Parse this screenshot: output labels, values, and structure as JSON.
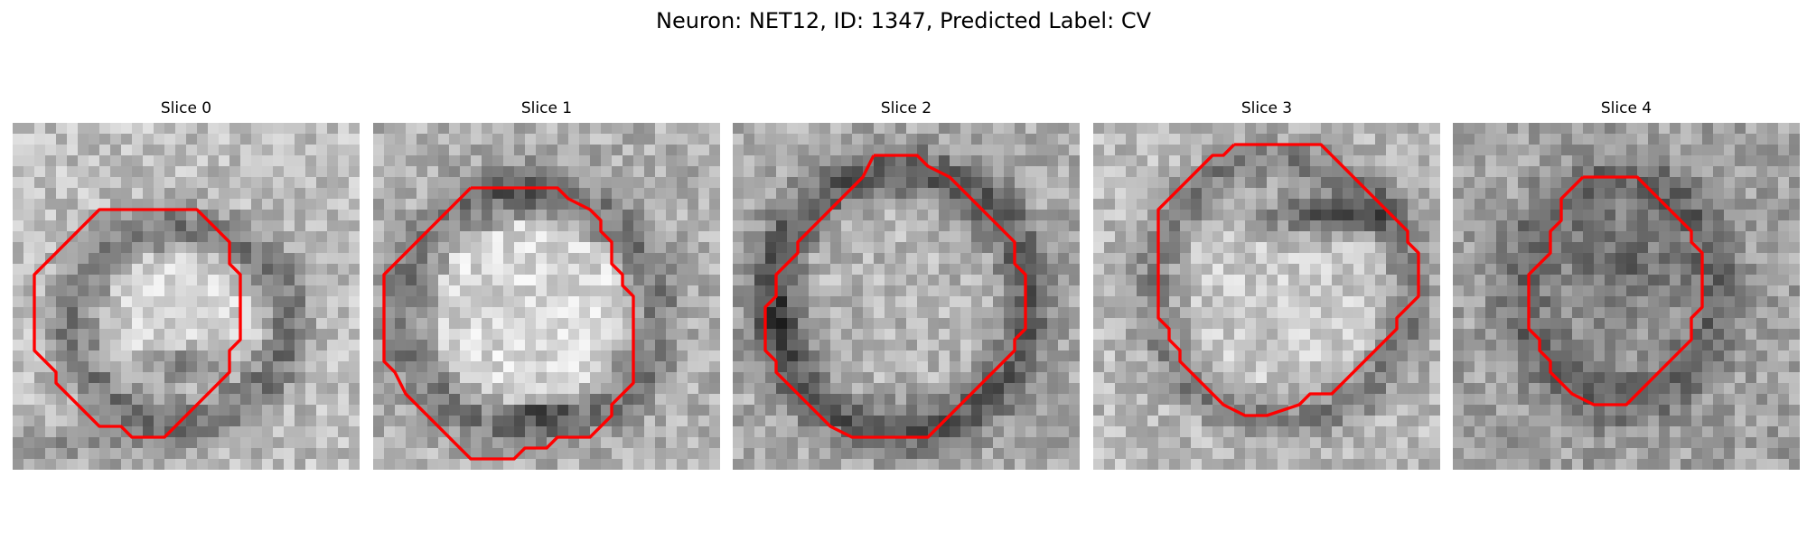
{
  "figure": {
    "title": "Neuron: NET12, ID: 1347, Predicted Label: CV"
  },
  "colors": {
    "contour": "#ff0000",
    "background": "#ffffff"
  },
  "panels": [
    {
      "title": "Slice 0",
      "seed": 11,
      "image": "grayscale-cross-section-with-dark-ring",
      "contour": [
        [
          10,
          8
        ],
        [
          17,
          8
        ],
        [
          19,
          10
        ],
        [
          20,
          11
        ],
        [
          20,
          13
        ],
        [
          21,
          14
        ],
        [
          21,
          15
        ],
        [
          21,
          20
        ],
        [
          20,
          21
        ],
        [
          20,
          23
        ],
        [
          19,
          24
        ],
        [
          18,
          25
        ],
        [
          17,
          26
        ],
        [
          16,
          27
        ],
        [
          15,
          28
        ],
        [
          14,
          29
        ],
        [
          11,
          29
        ],
        [
          10,
          28
        ],
        [
          8,
          28
        ],
        [
          7,
          27
        ],
        [
          6,
          26
        ],
        [
          5,
          25
        ],
        [
          4,
          24
        ],
        [
          4,
          23
        ],
        [
          3,
          22
        ],
        [
          2,
          21
        ],
        [
          2,
          14
        ],
        [
          3,
          13
        ],
        [
          4,
          12
        ],
        [
          5,
          11
        ],
        [
          6,
          10
        ],
        [
          7,
          9
        ],
        [
          8,
          8
        ]
      ]
    },
    {
      "title": "Slice 1",
      "seed": 23,
      "image": "grayscale-cross-section-with-bright-center",
      "contour": [
        [
          9,
          6
        ],
        [
          17,
          6
        ],
        [
          18,
          7
        ],
        [
          20,
          8
        ],
        [
          21,
          9
        ],
        [
          21,
          10
        ],
        [
          22,
          11
        ],
        [
          22,
          13
        ],
        [
          23,
          14
        ],
        [
          23,
          15
        ],
        [
          24,
          16
        ],
        [
          24,
          24
        ],
        [
          23,
          25
        ],
        [
          22,
          26
        ],
        [
          22,
          27
        ],
        [
          21,
          28
        ],
        [
          20,
          29
        ],
        [
          17,
          29
        ],
        [
          16,
          30
        ],
        [
          14,
          30
        ],
        [
          13,
          31
        ],
        [
          9,
          31
        ],
        [
          8,
          30
        ],
        [
          7,
          29
        ],
        [
          6,
          28
        ],
        [
          5,
          27
        ],
        [
          4,
          26
        ],
        [
          3,
          25
        ],
        [
          2,
          23
        ],
        [
          1,
          22
        ],
        [
          1,
          14
        ],
        [
          2,
          13
        ],
        [
          3,
          12
        ],
        [
          4,
          11
        ],
        [
          5,
          10
        ],
        [
          6,
          9
        ],
        [
          7,
          8
        ],
        [
          8,
          7
        ]
      ]
    },
    {
      "title": "Slice 2",
      "seed": 37,
      "image": "grayscale-cross-section-with-dark-rim",
      "contour": [
        [
          13,
          3
        ],
        [
          17,
          3
        ],
        [
          18,
          4
        ],
        [
          20,
          5
        ],
        [
          21,
          6
        ],
        [
          22,
          7
        ],
        [
          23,
          8
        ],
        [
          24,
          9
        ],
        [
          25,
          10
        ],
        [
          26,
          11
        ],
        [
          26,
          13
        ],
        [
          27,
          14
        ],
        [
          27,
          19
        ],
        [
          26,
          20
        ],
        [
          26,
          21
        ],
        [
          25,
          22
        ],
        [
          24,
          23
        ],
        [
          23,
          24
        ],
        [
          22,
          25
        ],
        [
          21,
          26
        ],
        [
          20,
          27
        ],
        [
          19,
          28
        ],
        [
          18,
          29
        ],
        [
          14,
          29
        ],
        [
          11,
          29
        ],
        [
          9,
          28
        ],
        [
          8,
          27
        ],
        [
          7,
          26
        ],
        [
          6,
          25
        ],
        [
          5,
          24
        ],
        [
          4,
          23
        ],
        [
          4,
          22
        ],
        [
          3,
          21
        ],
        [
          3,
          17
        ],
        [
          4,
          16
        ],
        [
          4,
          14
        ],
        [
          5,
          13
        ],
        [
          6,
          12
        ],
        [
          6,
          11
        ],
        [
          7,
          10
        ],
        [
          8,
          9
        ],
        [
          9,
          8
        ],
        [
          10,
          7
        ],
        [
          11,
          6
        ],
        [
          12,
          5
        ]
      ]
    },
    {
      "title": "Slice 3",
      "seed": 51,
      "image": "grayscale-cross-section-with-dark-top-band",
      "contour": [
        [
          13,
          2
        ],
        [
          21,
          2
        ],
        [
          22,
          3
        ],
        [
          23,
          4
        ],
        [
          24,
          5
        ],
        [
          25,
          6
        ],
        [
          26,
          7
        ],
        [
          27,
          8
        ],
        [
          28,
          9
        ],
        [
          29,
          10
        ],
        [
          29,
          11
        ],
        [
          30,
          12
        ],
        [
          30,
          16
        ],
        [
          29,
          17
        ],
        [
          28,
          18
        ],
        [
          28,
          19
        ],
        [
          27,
          20
        ],
        [
          26,
          21
        ],
        [
          25,
          22
        ],
        [
          24,
          23
        ],
        [
          23,
          24
        ],
        [
          22,
          25
        ],
        [
          20,
          25
        ],
        [
          19,
          26
        ],
        [
          16,
          27
        ],
        [
          14,
          27
        ],
        [
          12,
          26
        ],
        [
          11,
          25
        ],
        [
          10,
          24
        ],
        [
          9,
          23
        ],
        [
          8,
          22
        ],
        [
          8,
          21
        ],
        [
          7,
          20
        ],
        [
          7,
          19
        ],
        [
          6,
          18
        ],
        [
          6,
          8
        ],
        [
          7,
          7
        ],
        [
          8,
          6
        ],
        [
          9,
          5
        ],
        [
          10,
          4
        ],
        [
          11,
          3
        ],
        [
          12,
          3
        ]
      ]
    },
    {
      "title": "Slice 4",
      "seed": 67,
      "image": "grayscale-cross-section-with-dark-cluster",
      "contour": [
        [
          12,
          5
        ],
        [
          17,
          5
        ],
        [
          18,
          6
        ],
        [
          19,
          7
        ],
        [
          20,
          8
        ],
        [
          21,
          9
        ],
        [
          22,
          10
        ],
        [
          22,
          11
        ],
        [
          23,
          12
        ],
        [
          23,
          17
        ],
        [
          22,
          18
        ],
        [
          22,
          20
        ],
        [
          21,
          21
        ],
        [
          20,
          22
        ],
        [
          19,
          23
        ],
        [
          18,
          24
        ],
        [
          17,
          25
        ],
        [
          16,
          26
        ],
        [
          13,
          26
        ],
        [
          11,
          25
        ],
        [
          10,
          24
        ],
        [
          9,
          23
        ],
        [
          9,
          22
        ],
        [
          8,
          21
        ],
        [
          8,
          20
        ],
        [
          7,
          19
        ],
        [
          7,
          14
        ],
        [
          8,
          13
        ],
        [
          9,
          12
        ],
        [
          9,
          10
        ],
        [
          10,
          9
        ],
        [
          10,
          7
        ],
        [
          11,
          6
        ]
      ]
    }
  ]
}
